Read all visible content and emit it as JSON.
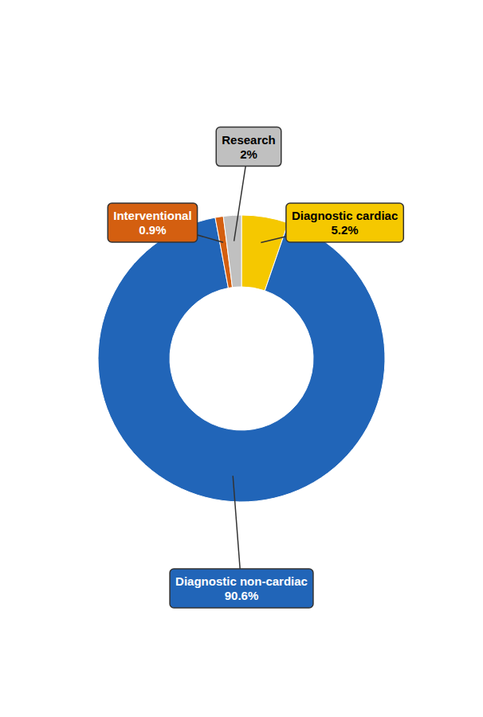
{
  "chart_data": {
    "type": "donut",
    "categories": [
      "Diagnostic cardiac",
      "Diagnostic non-cardiac",
      "Interventional",
      "Research"
    ],
    "values": [
      5.2,
      90.6,
      0.9,
      2.0
    ],
    "value_labels": [
      "5.2%",
      "90.6%",
      "0.9%",
      "2%"
    ],
    "colors": [
      "#f5c800",
      "#2165b8",
      "#d45f10",
      "#c0c0c0"
    ],
    "data_labels": true
  }
}
